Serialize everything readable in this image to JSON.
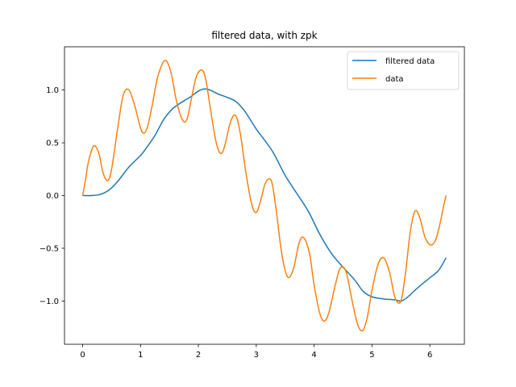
{
  "chart_data": {
    "type": "line",
    "title": "filtered data, with zpk",
    "xlabel": "",
    "ylabel": "",
    "xlim": [
      -0.314,
      6.597
    ],
    "ylim": [
      -1.41,
      1.41
    ],
    "xticks": [
      0,
      1,
      2,
      3,
      4,
      5,
      6
    ],
    "xtick_labels": [
      "0",
      "1",
      "2",
      "3",
      "4",
      "5",
      "6"
    ],
    "yticks": [
      -1.0,
      -0.5,
      0.0,
      0.5,
      1.0
    ],
    "ytick_labels": [
      "−1.0",
      "−0.5",
      "0.0",
      "0.5",
      "1.0"
    ],
    "grid": false,
    "legend": {
      "position": "top-right"
    },
    "series": [
      {
        "name": "filtered data",
        "color": "#1f77b4",
        "x": [
          0.0,
          0.15,
          0.3,
          0.45,
          0.6,
          0.8,
          1.0,
          1.1,
          1.25,
          1.4,
          1.55,
          1.7,
          1.85,
          2.0,
          2.1,
          2.2,
          2.35,
          2.5,
          2.65,
          2.8,
          3.0,
          3.15,
          3.3,
          3.5,
          3.7,
          3.9,
          4.1,
          4.3,
          4.5,
          4.7,
          4.85,
          5.0,
          5.2,
          5.4,
          5.5,
          5.6,
          5.8,
          6.0,
          6.15,
          6.28
        ],
        "y": [
          0.0,
          0.0,
          0.01,
          0.05,
          0.13,
          0.27,
          0.38,
          0.45,
          0.57,
          0.72,
          0.82,
          0.88,
          0.93,
          0.99,
          1.01,
          1.0,
          0.96,
          0.93,
          0.89,
          0.8,
          0.63,
          0.52,
          0.4,
          0.19,
          0.02,
          -0.15,
          -0.37,
          -0.55,
          -0.68,
          -0.8,
          -0.91,
          -0.96,
          -0.98,
          -0.99,
          -1.0,
          -0.97,
          -0.87,
          -0.78,
          -0.71,
          -0.59
        ]
      },
      {
        "name": "data",
        "color": "#ff7f0e",
        "x": [
          0.0,
          0.05,
          0.1,
          0.19,
          0.28,
          0.35,
          0.43,
          0.5,
          0.6,
          0.7,
          0.8,
          0.9,
          1.0,
          1.06,
          1.12,
          1.2,
          1.3,
          1.42,
          1.52,
          1.62,
          1.72,
          1.8,
          1.88,
          1.96,
          2.05,
          2.12,
          2.2,
          2.3,
          2.38,
          2.45,
          2.55,
          2.64,
          2.72,
          2.82,
          2.92,
          3.0,
          3.08,
          3.16,
          3.26,
          3.34,
          3.44,
          3.54,
          3.64,
          3.74,
          3.82,
          3.92,
          4.0,
          4.1,
          4.18,
          4.26,
          4.36,
          4.45,
          4.55,
          4.65,
          4.75,
          4.84,
          4.92,
          5.0,
          5.1,
          5.2,
          5.3,
          5.4,
          5.5,
          5.58,
          5.66,
          5.74,
          5.82,
          5.92,
          6.02,
          6.1,
          6.17,
          6.23,
          6.28
        ],
        "y": [
          0.0,
          0.15,
          0.32,
          0.47,
          0.4,
          0.22,
          0.14,
          0.25,
          0.62,
          0.95,
          1.0,
          0.85,
          0.64,
          0.59,
          0.65,
          0.85,
          1.13,
          1.28,
          1.18,
          0.9,
          0.72,
          0.72,
          0.92,
          1.12,
          1.19,
          1.12,
          0.85,
          0.52,
          0.4,
          0.46,
          0.69,
          0.76,
          0.6,
          0.22,
          -0.08,
          -0.16,
          -0.04,
          0.12,
          0.14,
          -0.12,
          -0.55,
          -0.77,
          -0.7,
          -0.45,
          -0.4,
          -0.55,
          -0.85,
          -1.12,
          -1.19,
          -1.1,
          -0.86,
          -0.69,
          -0.72,
          -0.98,
          -1.22,
          -1.28,
          -1.15,
          -0.9,
          -0.66,
          -0.59,
          -0.72,
          -0.97,
          -1.0,
          -0.73,
          -0.35,
          -0.15,
          -0.2,
          -0.4,
          -0.47,
          -0.42,
          -0.28,
          -0.12,
          0.0
        ]
      }
    ]
  }
}
